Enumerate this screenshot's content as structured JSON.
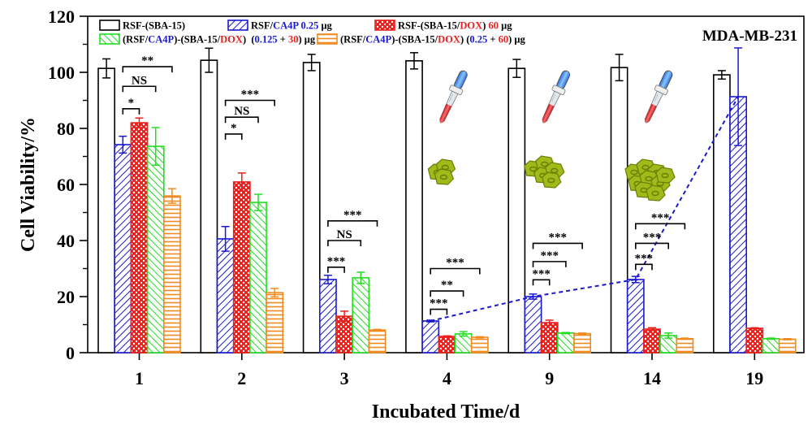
{
  "chart_data": {
    "type": "bar",
    "title": "",
    "annotation": "MDA-MB-231",
    "xlabel": "Incubated Time/d",
    "ylabel": "Cell Viability/%",
    "ylim": [
      0,
      120
    ],
    "yticks": [
      0,
      20,
      40,
      60,
      80,
      100,
      120
    ],
    "grid": false,
    "legend_position": "top",
    "categories": [
      "1",
      "2",
      "3",
      "4",
      "9",
      "14",
      "19"
    ],
    "series": [
      {
        "name": "RSF-(SBA-15)",
        "legend_parts": [
          {
            "t": "RSF-(SBA-15)",
            "c": "black"
          }
        ],
        "color": "#000000",
        "pattern": "none",
        "values": [
          101.4,
          104.3,
          103.5,
          104.1,
          101.4,
          101.7,
          99.1
        ],
        "errors": [
          3.4,
          4.3,
          2.9,
          2.9,
          3.2,
          4.7,
          1.5
        ]
      },
      {
        "name": "RSF/CA4P 0.25 μg",
        "legend_parts": [
          {
            "t": "RSF/",
            "c": "black"
          },
          {
            "t": "CA4P",
            "c": "blue"
          },
          {
            "t": " 0.25",
            "c": "blue"
          },
          {
            "t": " μg",
            "c": "black"
          }
        ],
        "color": "#1a1acc",
        "pattern": "diagonal",
        "values": [
          74.2,
          40.6,
          26.1,
          11.3,
          20.0,
          26.1,
          91.3
        ],
        "errors": [
          3.0,
          4.4,
          1.5,
          0.3,
          0.9,
          1.1,
          17.4
        ]
      },
      {
        "name": "RSF-(SBA-15/DOX) 60 μg",
        "legend_parts": [
          {
            "t": "RSF-(SBA-15/",
            "c": "black"
          },
          {
            "t": "DOX",
            "c": "red"
          },
          {
            "t": ")",
            "c": "black"
          },
          {
            "t": " 60",
            "c": "red"
          },
          {
            "t": " μg",
            "c": "black"
          }
        ],
        "color": "#e8201c",
        "pattern": "crosshatch",
        "values": [
          82.0,
          60.9,
          13.0,
          5.8,
          10.7,
          8.4,
          8.7
        ],
        "errors": [
          1.7,
          3.2,
          1.8,
          0.2,
          0.9,
          0.5,
          0.2
        ]
      },
      {
        "name": "(RSF/CA4P)-(SBA-15/DOX) (0.125 + 30) μg",
        "legend_parts": [
          {
            "t": "(RSF/",
            "c": "black"
          },
          {
            "t": "CA4P",
            "c": "blue"
          },
          {
            "t": ")-(SBA-15/",
            "c": "black"
          },
          {
            "t": "DOX",
            "c": "red"
          },
          {
            "t": ")  (",
            "c": "black"
          },
          {
            "t": "0.125",
            "c": "blue"
          },
          {
            "t": " + ",
            "c": "black"
          },
          {
            "t": "30",
            "c": "red"
          },
          {
            "t": ") μg",
            "c": "black"
          }
        ],
        "color": "#22dd22",
        "pattern": "diagonal-back",
        "values": [
          73.6,
          53.6,
          26.7,
          6.7,
          7.0,
          6.1,
          5.0
        ],
        "errors": [
          6.7,
          2.9,
          2.0,
          0.8,
          0.2,
          0.9,
          0.2
        ]
      },
      {
        "name": "(RSF/CA4P)-(SBA-15/DOX) (0.25 + 60) μg",
        "legend_parts": [
          {
            "t": "(RSF/",
            "c": "black"
          },
          {
            "t": "CA4P",
            "c": "blue"
          },
          {
            "t": ")-(SBA-15/",
            "c": "black"
          },
          {
            "t": "DOX",
            "c": "red"
          },
          {
            "t": ") (",
            "c": "black"
          },
          {
            "t": "0.25",
            "c": "blue"
          },
          {
            "t": " + ",
            "c": "black"
          },
          {
            "t": "60",
            "c": "red"
          },
          {
            "t": ") μg",
            "c": "black"
          }
        ],
        "color": "#f08a1e",
        "pattern": "horizontal",
        "values": [
          55.9,
          21.4,
          8.1,
          5.5,
          6.8,
          5.0,
          4.8
        ],
        "errors": [
          2.6,
          1.5,
          0.2,
          0.2,
          0.2,
          0.2,
          0.2
        ]
      }
    ],
    "trend_line": {
      "series": "RSF/CA4P 0.25 μg",
      "style": "dashed",
      "color": "#1a1acc",
      "categories": [
        "4",
        "9",
        "14",
        "19"
      ]
    },
    "significance": [
      {
        "group": "1",
        "brackets": [
          {
            "from": 1,
            "to": 2,
            "label": "*"
          },
          {
            "from": 1,
            "to": 3,
            "label": "NS"
          },
          {
            "from": 1,
            "to": 4,
            "label": "**"
          }
        ]
      },
      {
        "group": "2",
        "brackets": [
          {
            "from": 1,
            "to": 2,
            "label": "*"
          },
          {
            "from": 1,
            "to": 3,
            "label": "NS"
          },
          {
            "from": 1,
            "to": 4,
            "label": "***"
          }
        ]
      },
      {
        "group": "3",
        "brackets": [
          {
            "from": 1,
            "to": 2,
            "label": "***"
          },
          {
            "from": 1,
            "to": 3,
            "label": "NS"
          },
          {
            "from": 1,
            "to": 4,
            "label": "***"
          }
        ]
      },
      {
        "group": "4",
        "brackets": [
          {
            "from": 1,
            "to": 2,
            "label": "***"
          },
          {
            "from": 1,
            "to": 3,
            "label": "**"
          },
          {
            "from": 1,
            "to": 4,
            "label": "***"
          }
        ]
      },
      {
        "group": "9",
        "brackets": [
          {
            "from": 1,
            "to": 2,
            "label": "***"
          },
          {
            "from": 1,
            "to": 3,
            "label": "***"
          },
          {
            "from": 1,
            "to": 4,
            "label": "***"
          }
        ]
      },
      {
        "group": "14",
        "brackets": [
          {
            "from": 1,
            "to": 2,
            "label": "***"
          },
          {
            "from": 1,
            "to": 3,
            "label": "***"
          },
          {
            "from": 1,
            "to": 4,
            "label": "***"
          }
        ]
      }
    ],
    "bracket_levels": {
      "1": [
        87,
        95,
        102
      ],
      "2": [
        78,
        84,
        90
      ],
      "3": [
        30.5,
        40,
        47
      ],
      "4": [
        15.5,
        22,
        30
      ],
      "9": [
        26,
        32.5,
        39
      ],
      "14": [
        31.5,
        39,
        46
      ]
    },
    "illustrations": [
      {
        "group": "4",
        "icon": "dropper-icon",
        "cells": "cell-cluster-small"
      },
      {
        "group": "9",
        "icon": "dropper-icon",
        "cells": "cell-cluster-medium"
      },
      {
        "group": "14",
        "icon": "dropper-icon",
        "cells": "cell-cluster-large"
      }
    ]
  },
  "colors": {
    "black": "#000000",
    "blue": "#1a1acc",
    "red": "#e8201c",
    "green": "#22dd22",
    "orange": "#f08a1e"
  }
}
